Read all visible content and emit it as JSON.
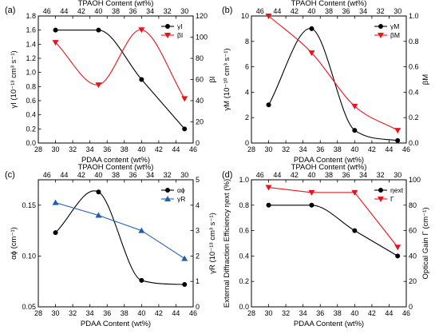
{
  "chart_data": [
    {
      "panel": "(a)",
      "type": "line",
      "top_title": "TPAOH Content (wt%)",
      "xlabel": "PDAA content (wt%)",
      "ylabel": "γI (10⁻¹³ cm³ s⁻¹)",
      "y2label": "βI",
      "xlim": [
        28,
        46
      ],
      "x_ticks": [
        28,
        30,
        32,
        34,
        36,
        38,
        40,
        42,
        44,
        46
      ],
      "top_ticks": [
        46,
        44,
        42,
        40,
        38,
        36,
        34,
        32,
        30
      ],
      "ylim": [
        0.0,
        1.8
      ],
      "y_ticks": [
        "0.0",
        "0.2",
        "0.4",
        "0.6",
        "0.8",
        "1.0",
        "1.2",
        "1.4",
        "1.6",
        "1.8"
      ],
      "y2lim": [
        0,
        120
      ],
      "y2_ticks": [
        "0",
        "20",
        "40",
        "60",
        "80",
        "100",
        "120"
      ],
      "legend_position": "top-right",
      "series": [
        {
          "name": "γI",
          "axis": "left",
          "marker": "circle",
          "color": "#000000",
          "x": [
            30,
            35,
            40,
            45
          ],
          "y": [
            1.6,
            1.6,
            0.9,
            0.2
          ]
        },
        {
          "name": "βI",
          "axis": "right",
          "marker": "triangle-down",
          "color": "#e8141c",
          "x": [
            30,
            35,
            40,
            45
          ],
          "y": [
            95,
            55,
            107,
            42
          ]
        }
      ]
    },
    {
      "panel": "(b)",
      "type": "line",
      "top_title": "TPAOH Content (wt%)",
      "xlabel": "PDAA Content (wt%)",
      "ylabel": "γM (10⁻¹⁰ cm³ s⁻¹)",
      "y2label": "βM",
      "xlim": [
        28,
        46
      ],
      "x_ticks": [
        28,
        30,
        32,
        34,
        36,
        38,
        40,
        42,
        44,
        46
      ],
      "top_ticks": [
        46,
        44,
        42,
        40,
        38,
        36,
        34,
        32,
        30
      ],
      "ylim": [
        0,
        10
      ],
      "y_ticks": [
        "0",
        "2",
        "4",
        "6",
        "8",
        "10"
      ],
      "y2lim": [
        0.0,
        1.0
      ],
      "y2_ticks": [
        "0.0",
        "0.2",
        "0.4",
        "0.6",
        "0.8",
        "1.0"
      ],
      "legend_position": "top-right",
      "series": [
        {
          "name": "γM",
          "axis": "left",
          "marker": "circle",
          "color": "#000000",
          "x": [
            30,
            35,
            40,
            45
          ],
          "y": [
            3.0,
            9.0,
            1.0,
            0.2
          ]
        },
        {
          "name": "βM",
          "axis": "right",
          "marker": "triangle-down",
          "color": "#e8141c",
          "x": [
            30,
            35,
            40,
            45
          ],
          "y": [
            1.0,
            0.71,
            0.29,
            0.1
          ]
        }
      ]
    },
    {
      "panel": "(c)",
      "type": "line",
      "top_title": "TPAOH Content (wt%)",
      "xlabel": "PDAA Content (wt%)",
      "ylabel": "αϕ (cm⁻¹)",
      "y2label": "γR (10⁻¹³ cm³ s⁻¹)",
      "xlim": [
        28,
        46
      ],
      "x_ticks": [
        28,
        30,
        32,
        34,
        36,
        38,
        40,
        42,
        44,
        46
      ],
      "top_ticks": [
        46,
        44,
        42,
        40,
        38,
        36,
        34,
        32,
        30
      ],
      "ylim": [
        0.05,
        0.175
      ],
      "y_ticks": [
        "0.05",
        "0.10",
        "0.15"
      ],
      "y_tick_values": [
        0.05,
        0.1,
        0.15
      ],
      "y2lim": [
        0,
        5
      ],
      "y2_ticks": [
        "0",
        "1",
        "2",
        "3",
        "4",
        "5"
      ],
      "legend_position": "top-right",
      "series": [
        {
          "name": "αϕ",
          "axis": "left",
          "marker": "circle",
          "color": "#000000",
          "x": [
            30,
            35,
            40,
            45
          ],
          "y": [
            0.123,
            0.163,
            0.076,
            0.072
          ]
        },
        {
          "name": "γR",
          "axis": "right",
          "marker": "triangle-up",
          "color": "#1f5fb0",
          "x": [
            30,
            35,
            40,
            45
          ],
          "y": [
            4.1,
            3.6,
            3.0,
            1.9
          ]
        }
      ]
    },
    {
      "panel": "(d)",
      "type": "line",
      "top_title": "TPAOH Content (wt%)",
      "xlabel": "PDAA Content (wt%)",
      "ylabel": "External Diffraction Efficiency ηext (%)",
      "y2label": "Optical Gain Γ (cm⁻¹)",
      "xlim": [
        28,
        46
      ],
      "x_ticks": [
        28,
        30,
        32,
        34,
        36,
        38,
        40,
        42,
        44,
        46
      ],
      "top_ticks": [
        46,
        44,
        42,
        40,
        38,
        36,
        34,
        32,
        30
      ],
      "ylim": [
        0.0,
        1.0
      ],
      "y_ticks": [
        "0.0",
        "0.2",
        "0.4",
        "0.6",
        "0.8",
        "1.0"
      ],
      "y2lim": [
        0,
        100
      ],
      "y2_ticks": [
        "0",
        "20",
        "40",
        "60",
        "80",
        "100"
      ],
      "legend_position": "top-right",
      "series": [
        {
          "name": "ηext",
          "axis": "left",
          "marker": "circle",
          "color": "#000000",
          "x": [
            30,
            35,
            40,
            45
          ],
          "y": [
            0.8,
            0.8,
            0.6,
            0.4
          ]
        },
        {
          "name": "Γ",
          "axis": "right",
          "marker": "triangle-down",
          "color": "#e8141c",
          "x": [
            30,
            35,
            40,
            45
          ],
          "y": [
            94,
            90,
            90,
            47
          ]
        }
      ]
    }
  ]
}
